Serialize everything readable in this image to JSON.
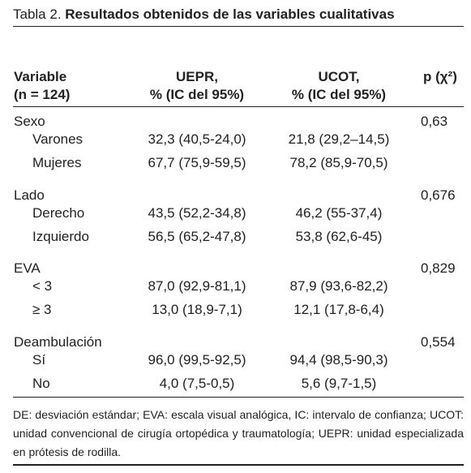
{
  "title": {
    "label": "Tabla 2.",
    "text": "Resultados obtenidos de las variables cualitativas"
  },
  "table": {
    "header": {
      "variable": "Variable",
      "n": "(n = 124)",
      "uepr": "UEPR,",
      "uepr_sub": "% (IC del 95%)",
      "ucot": "UCOT,",
      "ucot_sub": "% (IC del 95%)",
      "p": "p (χ²)"
    },
    "groups": [
      {
        "name": "Sexo",
        "p": "0,63",
        "rows": [
          [
            "Varones",
            "32,3 (40,5-24,0)",
            "21,8 (29,2–14,5)"
          ],
          [
            "Mujeres",
            "67,7 (75,9-59,5)",
            "78,2 (85,9-70,5)"
          ]
        ]
      },
      {
        "name": "Lado",
        "p": "0,676",
        "rows": [
          [
            "Derecho",
            "43,5 (52,2-34,8)",
            "46,2 (55-37,4)"
          ],
          [
            "Izquierdo",
            "56,5 (65,2-47,8)",
            "53,8 (62,6-45)"
          ]
        ]
      },
      {
        "name": "EVA",
        "p": "0,829",
        "rows": [
          [
            "< 3",
            "87,0 (92,9-81,1)",
            "87,9 (93,6-82,2)"
          ],
          [
            "≥ 3",
            "13,0 (18,9-7,1)",
            "12,1 (17,8-6,4)"
          ]
        ]
      },
      {
        "name": "Deambulación",
        "p": "0,554",
        "rows": [
          [
            "Sí",
            "96,0 (99,5-92,5)",
            "94,4 (98,5-90,3)"
          ],
          [
            "No",
            "4,0 (7,5-0,5)",
            "5,6 (9,7-1,5)"
          ]
        ]
      }
    ]
  },
  "note": "DE: desviación estándar; EVA: escala visual analógica, IC: intervalo de confianza; UCOT: unidad convencional de cirugía ortopédica y traumatología; UEPR: unidad especializada en prótesis de rodilla."
}
